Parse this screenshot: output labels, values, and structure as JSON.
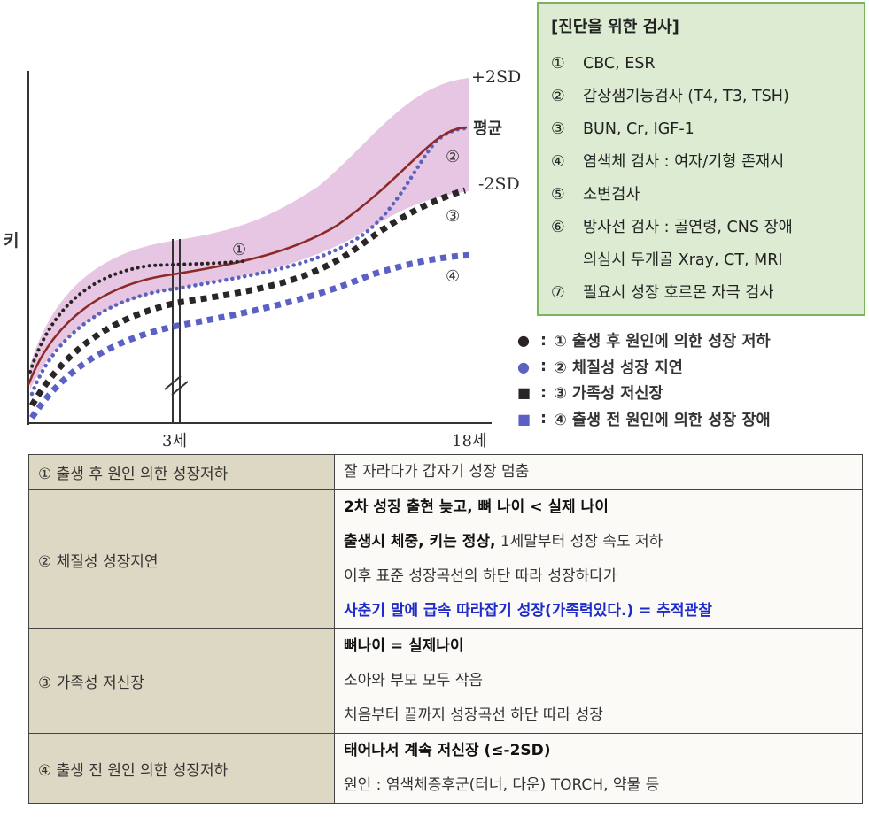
{
  "chart": {
    "y_axis_label": "키",
    "x_tick_3": "3세",
    "x_tick_18": "18세",
    "label_plus2sd": "+2SD",
    "label_mean": "평균",
    "label_minus2sd": "-2SD",
    "curve_markers": [
      "①",
      "②",
      "③",
      "④"
    ],
    "colors": {
      "band": "#e6c6e2",
      "mean": "#8b2a26",
      "dots_black": "#2a2226",
      "dots_blue": "#5b62be",
      "sq_black": "#2a2628",
      "sq_blue": "#5b60c4"
    }
  },
  "tests_box": {
    "title": "[진단을 위한 검사]",
    "items": [
      {
        "num": "①",
        "text": "CBC, ESR"
      },
      {
        "num": "②",
        "text": "갑상샘기능검사 (T4, T3, TSH)"
      },
      {
        "num": "③",
        "text": "BUN, Cr, IGF-1"
      },
      {
        "num": "④",
        "text": "염색체 검사 : 여자/기형 존재시"
      },
      {
        "num": "⑤",
        "text": "소변검사"
      },
      {
        "num": "⑥",
        "text": "방사선 검사 : 골연령, CNS 장애"
      },
      {
        "num": "",
        "text": "의심시 두개골 Xray, CT, MRI"
      },
      {
        "num": "⑦",
        "text": "필요시 성장 호르몬 자극 검사"
      }
    ]
  },
  "legend": [
    {
      "marker": "●",
      "color": "#2a2226",
      "text": "① 출생 후 원인에 의한 성장 저하"
    },
    {
      "marker": "●",
      "color": "#5b62be",
      "text": "② 체질성 성장 지연"
    },
    {
      "marker": "■",
      "color": "#2a2628",
      "text": "③ 가족성 저신장"
    },
    {
      "marker": "■",
      "color": "#5b60c4",
      "text": "④ 출생 전 원인에 의한 성장 장애"
    }
  ],
  "table": {
    "row1": {
      "label": "① 출생 후 원인 의한 성장저하",
      "lines": [
        "잘 자라다가 갑자기 성장 멈춤"
      ]
    },
    "row2": {
      "label": "② 체질성 성장지연",
      "line1": "2차 성징 출현 늦고, 뼈 나이 < 실제 나이",
      "line2_bold": "출생시 체중, 키는 정상,",
      "line2_rest": " 1세말부터 성장 속도 저하",
      "line3": "이후 표준 성장곡선의 하단 따라 성장하다가",
      "line4": "사춘기 말에 급속 따라잡기 성장(가족력있다.) = 추적관찰"
    },
    "row3": {
      "label": "③ 가족성 저신장",
      "line1": "뼈나이 = 실제나이",
      "line2": "소아와 부모 모두 작음",
      "line3": "처음부터 끝까지 성장곡선 하단 따라 성장"
    },
    "row4": {
      "label": "④ 출생 전 원인 의한 성장저하",
      "line1": "태어나서 계속 저신장 (≤-2SD)",
      "line2": "원인 : 염색체증후군(터너, 다운) TORCH, 약물 등"
    }
  }
}
